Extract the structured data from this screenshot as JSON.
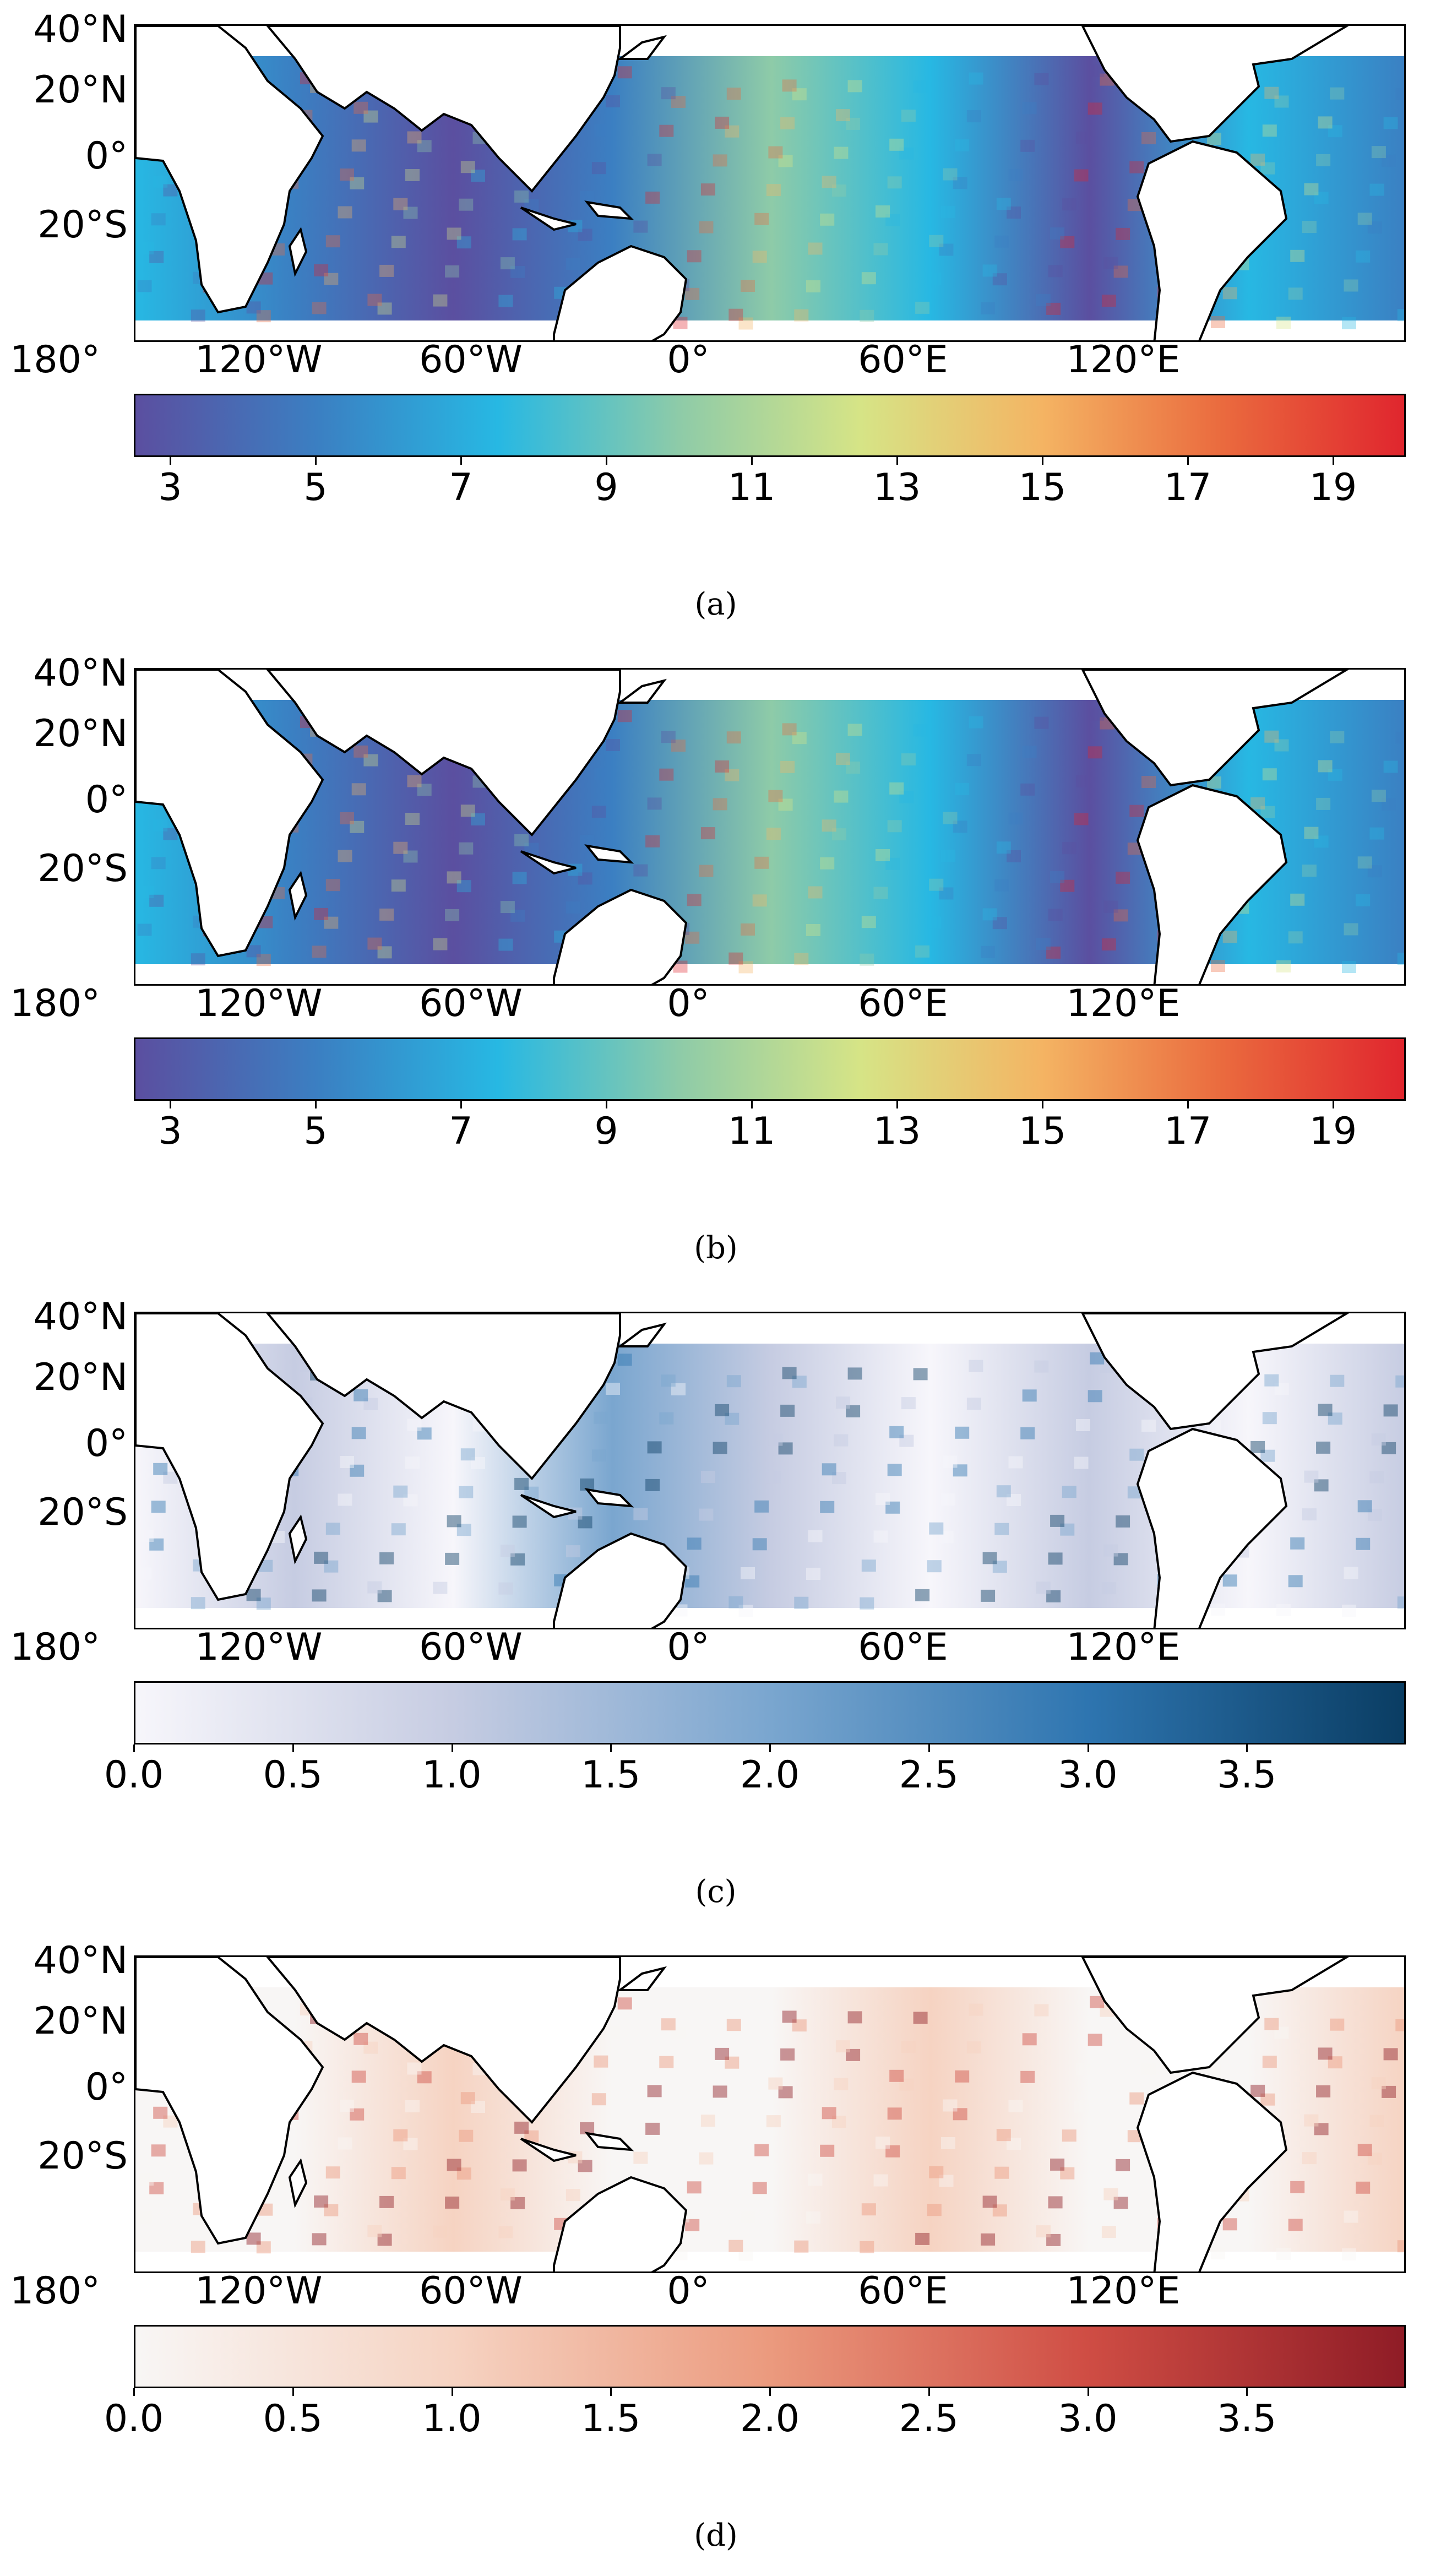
{
  "lat_labels": [
    "40°N",
    "20°N",
    "0°",
    "20°S"
  ],
  "lon_labels": [
    "180°",
    "120°W",
    "60°W",
    "0°",
    "60°E",
    "120°E"
  ],
  "panels": [
    {
      "caption": "(a)",
      "colormap": "spectral",
      "field": "mean",
      "colorbar": {
        "ticks": [
          "3",
          "5",
          "7",
          "9",
          "11",
          "13",
          "15",
          "17",
          "19"
        ],
        "min": 2.5,
        "max": 20
      },
      "colors": [
        "#5b4fa0",
        "#3b7fc2",
        "#27b8e3",
        "#8ecba8",
        "#d6e486",
        "#f4b463",
        "#ea6a3e",
        "#e0262e"
      ]
    },
    {
      "caption": "(b)",
      "colormap": "spectral",
      "field": "mean",
      "colorbar": {
        "ticks": [
          "3",
          "5",
          "7",
          "9",
          "11",
          "13",
          "15",
          "17",
          "19"
        ],
        "min": 2.5,
        "max": 20
      },
      "colors": [
        "#5b4fa0",
        "#3b7fc2",
        "#27b8e3",
        "#8ecba8",
        "#d6e486",
        "#f4b463",
        "#ea6a3e",
        "#e0262e"
      ]
    },
    {
      "caption": "(c)",
      "colormap": "blues",
      "field": "difference",
      "colorbar": {
        "ticks": [
          "0.0",
          "0.5",
          "1.0",
          "1.5",
          "2.0",
          "2.5",
          "3.0",
          "3.5"
        ],
        "min": 0,
        "max": 4
      },
      "colors": [
        "#f7f6fb",
        "#c6cce2",
        "#7aa6cf",
        "#2e75b0",
        "#0a3d63"
      ]
    },
    {
      "caption": "(d)",
      "colormap": "reds",
      "field": "difference",
      "colorbar": {
        "ticks": [
          "0.0",
          "0.5",
          "1.0",
          "1.5",
          "2.0",
          "2.5",
          "3.0",
          "3.5"
        ],
        "min": 0,
        "max": 4
      },
      "colors": [
        "#f8f6f5",
        "#f6d3c2",
        "#eb9a7e",
        "#cf4d44",
        "#8f1c26"
      ]
    }
  ]
}
